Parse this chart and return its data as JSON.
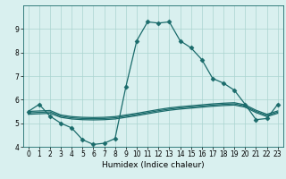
{
  "title": "",
  "xlabel": "Humidex (Indice chaleur)",
  "ylabel": "",
  "bg_color": "#d9f0ef",
  "line_color": "#1a6b6b",
  "grid_color": "#aad4d0",
  "xlim": [
    -0.5,
    23.5
  ],
  "ylim": [
    4,
    10
  ],
  "yticks": [
    4,
    5,
    6,
    7,
    8,
    9
  ],
  "xticks": [
    0,
    1,
    2,
    3,
    4,
    5,
    6,
    7,
    8,
    9,
    10,
    11,
    12,
    13,
    14,
    15,
    16,
    17,
    18,
    19,
    20,
    21,
    22,
    23
  ],
  "lines": [
    {
      "x": [
        0,
        1,
        2,
        3,
        4,
        5,
        6,
        7,
        8,
        9,
        10,
        11,
        12,
        13,
        14,
        15,
        16,
        17,
        18,
        19,
        20,
        21,
        22,
        23
      ],
      "y": [
        5.5,
        5.8,
        5.3,
        5.0,
        4.8,
        4.3,
        4.1,
        4.15,
        4.35,
        6.55,
        8.5,
        9.3,
        9.25,
        9.3,
        8.5,
        8.2,
        7.7,
        6.9,
        6.7,
        6.4,
        5.8,
        5.15,
        5.2,
        5.8
      ],
      "marker": "D",
      "markersize": 2.5,
      "linewidth": 0.9
    },
    {
      "x": [
        0,
        1,
        2,
        3,
        4,
        5,
        6,
        7,
        8,
        9,
        10,
        11,
        12,
        13,
        14,
        15,
        16,
        17,
        18,
        19,
        20,
        21,
        22,
        23
      ],
      "y": [
        5.5,
        5.52,
        5.54,
        5.35,
        5.28,
        5.25,
        5.24,
        5.25,
        5.28,
        5.35,
        5.42,
        5.5,
        5.58,
        5.65,
        5.7,
        5.74,
        5.78,
        5.82,
        5.85,
        5.87,
        5.78,
        5.55,
        5.38,
        5.52
      ],
      "marker": null,
      "markersize": 0,
      "linewidth": 0.9
    },
    {
      "x": [
        0,
        1,
        2,
        3,
        4,
        5,
        6,
        7,
        8,
        9,
        10,
        11,
        12,
        13,
        14,
        15,
        16,
        17,
        18,
        19,
        20,
        21,
        22,
        23
      ],
      "y": [
        5.44,
        5.46,
        5.48,
        5.3,
        5.23,
        5.2,
        5.19,
        5.2,
        5.23,
        5.3,
        5.37,
        5.45,
        5.53,
        5.6,
        5.65,
        5.69,
        5.73,
        5.77,
        5.8,
        5.82,
        5.73,
        5.5,
        5.33,
        5.47
      ],
      "marker": null,
      "markersize": 0,
      "linewidth": 0.9
    },
    {
      "x": [
        0,
        1,
        2,
        3,
        4,
        5,
        6,
        7,
        8,
        9,
        10,
        11,
        12,
        13,
        14,
        15,
        16,
        17,
        18,
        19,
        20,
        21,
        22,
        23
      ],
      "y": [
        5.38,
        5.4,
        5.42,
        5.25,
        5.18,
        5.15,
        5.14,
        5.15,
        5.18,
        5.25,
        5.32,
        5.4,
        5.48,
        5.55,
        5.6,
        5.64,
        5.68,
        5.72,
        5.75,
        5.77,
        5.68,
        5.45,
        5.28,
        5.42
      ],
      "marker": null,
      "markersize": 0,
      "linewidth": 0.9
    }
  ]
}
